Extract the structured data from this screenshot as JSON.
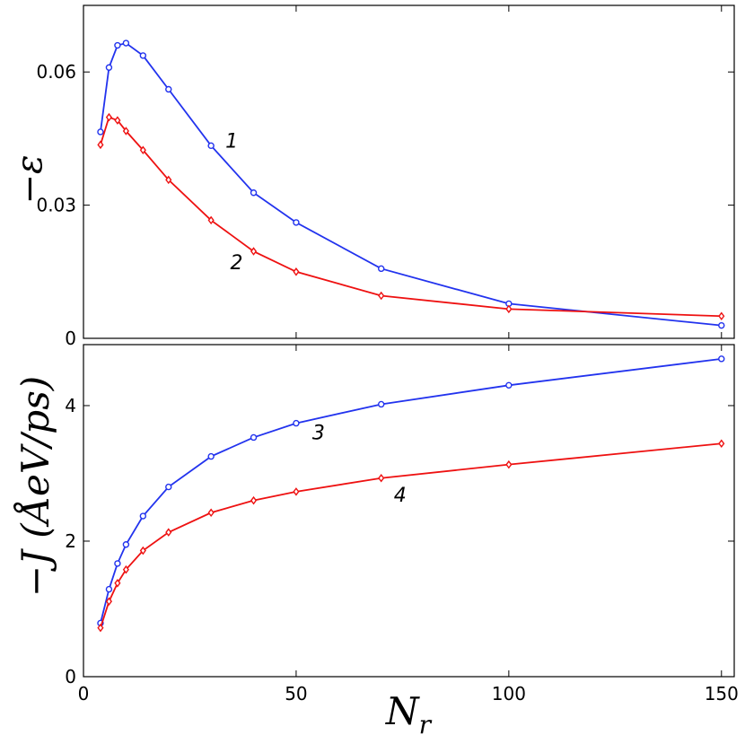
{
  "chart_data": [
    {
      "type": "line",
      "panel": "top",
      "ylabel": "−ε",
      "xlim": [
        0,
        153
      ],
      "ylim": [
        0,
        0.075
      ],
      "yticks": [
        0,
        0.03,
        0.06
      ],
      "ytick_labels": [
        "0",
        "0.03",
        "0.06"
      ],
      "xticks": [
        0,
        50,
        100,
        150
      ],
      "series": [
        {
          "name": "1",
          "color": "#2233ee",
          "marker": "circle",
          "x": [
            4,
            6,
            8,
            10,
            14,
            20,
            30,
            40,
            50,
            70,
            100,
            150
          ],
          "y": [
            0.0465,
            0.061,
            0.066,
            0.0665,
            0.0637,
            0.0561,
            0.0434,
            0.0328,
            0.0261,
            0.0157,
            0.0078,
            0.0029
          ],
          "label": "1"
        },
        {
          "name": "2",
          "color": "#ee1111",
          "marker": "diamond",
          "x": [
            4,
            6,
            8,
            10,
            14,
            20,
            30,
            40,
            50,
            70,
            100,
            150
          ],
          "y": [
            0.0436,
            0.0498,
            0.0491,
            0.0467,
            0.0424,
            0.0357,
            0.0266,
            0.0196,
            0.015,
            0.0096,
            0.0066,
            0.005
          ],
          "label": "2"
        }
      ]
    },
    {
      "type": "line",
      "panel": "bottom",
      "ylabel": "−J (ÅeV/ps)",
      "xlabel": "N",
      "xlabel_sub": "r",
      "xlim": [
        0,
        153
      ],
      "ylim": [
        0,
        4.9
      ],
      "yticks": [
        0,
        2,
        4
      ],
      "ytick_labels": [
        "0",
        "2",
        "4"
      ],
      "xticks": [
        0,
        50,
        100,
        150
      ],
      "xtick_labels": [
        "0",
        "50",
        "100",
        "150"
      ],
      "series": [
        {
          "name": "3",
          "color": "#2233ee",
          "marker": "circle",
          "x": [
            4,
            6,
            8,
            10,
            14,
            20,
            30,
            40,
            50,
            70,
            100,
            150
          ],
          "y": [
            0.79,
            1.29,
            1.67,
            1.95,
            2.37,
            2.8,
            3.25,
            3.53,
            3.74,
            4.02,
            4.3,
            4.69
          ],
          "label": "3"
        },
        {
          "name": "4",
          "color": "#ee1111",
          "marker": "diamond",
          "x": [
            4,
            6,
            8,
            10,
            14,
            20,
            30,
            40,
            50,
            70,
            100,
            150
          ],
          "y": [
            0.72,
            1.11,
            1.38,
            1.58,
            1.86,
            2.13,
            2.42,
            2.6,
            2.73,
            2.93,
            3.13,
            3.44
          ],
          "label": "4"
        }
      ]
    }
  ]
}
